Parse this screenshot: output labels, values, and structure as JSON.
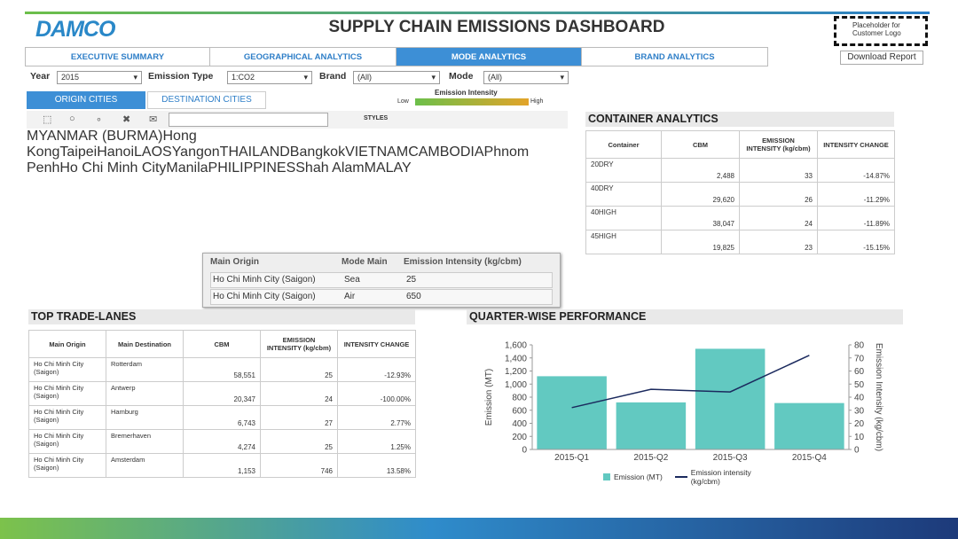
{
  "header": {
    "logo": "DAMCO",
    "title": "SUPPLY CHAIN EMISSIONS DASHBOARD",
    "customer_logo": "Placeholder for Customer Logo"
  },
  "tabs": {
    "items": [
      "EXECUTIVE SUMMARY",
      "GEOGRAPHICAL ANALYTICS",
      "MODE ANALYTICS",
      "BRAND ANALYTICS"
    ],
    "active": 2
  },
  "download": "Download Report",
  "filters": [
    {
      "label": "Year",
      "value": "2015"
    },
    {
      "label": "Emission Type",
      "value": "1:CO2"
    },
    {
      "label": "Brand",
      "value": "(All)"
    },
    {
      "label": "Mode",
      "value": "(All)"
    }
  ],
  "map": {
    "toggles": [
      "ORIGIN CITIES",
      "DESTINATION CITIES"
    ],
    "legend": {
      "title": "Emission Intensity",
      "low": "Low",
      "high": "High"
    },
    "styles": "STYLES",
    "labels": [
      "MYANMAR (BURMA)",
      "Hong Kong",
      "Taipei",
      "Hanoi",
      "LAOS",
      "Yangon",
      "THAILAND",
      "Bangkok",
      "VIETNAM",
      "CAMBODIA",
      "Phnom Penh",
      "Ho Chi Minh City",
      "Manila",
      "PHILIPPINES",
      "Shah Alam",
      "MALAY"
    ],
    "tooltip": {
      "header": [
        "Main Origin",
        "Mode Main",
        "Emission Intensity (kg/cbm)"
      ],
      "rows": [
        [
          "Ho Chi Minh City (Saigon)",
          "Sea",
          "25"
        ],
        [
          "Ho Chi Minh City (Saigon)",
          "Air",
          "650"
        ]
      ]
    }
  },
  "container_analytics": {
    "title": "CONTAINER ANALYTICS",
    "header": [
      "Container",
      "CBM",
      "EMISSION INTENSITY (kg/cbm)",
      "INTENSITY CHANGE"
    ],
    "rows": [
      [
        "20DRY",
        "2,488",
        "33",
        "-14.87%"
      ],
      [
        "40DRY",
        "29,620",
        "26",
        "-11.29%"
      ],
      [
        "40HIGH",
        "38,047",
        "24",
        "-11.89%"
      ],
      [
        "45HIGH",
        "19,825",
        "23",
        "-15.15%"
      ]
    ]
  },
  "trade_lanes": {
    "title": "TOP TRADE-LANES",
    "header": [
      "Main Origin",
      "Main Destination",
      "CBM",
      "EMISSION INTENSITY (kg/cbm)",
      "INTENSITY CHANGE"
    ],
    "rows": [
      [
        "Ho Chi Minh City (Saigon)",
        "Rotterdam",
        "58,551",
        "25",
        "-12.93%"
      ],
      [
        "Ho Chi Minh City (Saigon)",
        "Antwerp",
        "20,347",
        "24",
        "-100.00%"
      ],
      [
        "Ho Chi Minh City (Saigon)",
        "Hamburg",
        "6,743",
        "27",
        "2.77%"
      ],
      [
        "Ho Chi Minh City (Saigon)",
        "Bremerhaven",
        "4,274",
        "25",
        "1.25%"
      ],
      [
        "Ho Chi Minh City (Saigon)",
        "Amsterdam",
        "1,153",
        "746",
        "13.58%"
      ]
    ]
  },
  "chart_data": {
    "type": "bar",
    "title": "QUARTER-WISE PERFORMANCE",
    "categories": [
      "2015-Q1",
      "2015-Q2",
      "2015-Q3",
      "2015-Q4"
    ],
    "y_label": "Emission (MT)",
    "y2_label": "Emission Intensity (kg/cbm)",
    "series": [
      {
        "name": "Emission (MT)",
        "type": "bar",
        "color": "#62c9c1",
        "values": [
          1120,
          720,
          1540,
          710
        ]
      },
      {
        "name": "Emission intensity (kg/cbm)",
        "type": "line",
        "axis": "y2",
        "color": "#1b2a5e",
        "values": [
          32,
          46,
          44,
          72
        ]
      }
    ],
    "ylim": [
      0,
      1600
    ],
    "yticks": [
      0,
      200,
      400,
      600,
      800,
      {
        "value": 1000,
        "label": "1,000"
      },
      {
        "value": 1200,
        "label": "1,200"
      },
      {
        "value": 1400,
        "label": "1,400"
      },
      {
        "value": 1600,
        "label": "1,600"
      }
    ],
    "y2lim": [
      0,
      80
    ],
    "y2ticks": [
      0,
      10,
      20,
      30,
      40,
      50,
      60,
      70,
      80
    ],
    "grid": false
  }
}
